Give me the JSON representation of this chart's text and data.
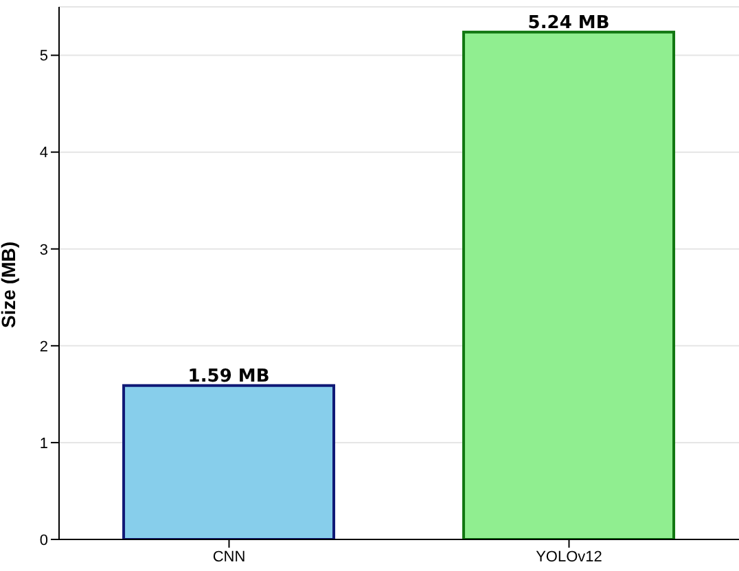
{
  "chart_data": {
    "type": "bar",
    "categories": [
      "CNN",
      "YOLOv12"
    ],
    "values": [
      1.59,
      5.24
    ],
    "colors": [
      "#87ceeb",
      "#90ee90"
    ],
    "value_labels": [
      "1.59 MB",
      "5.24 MB"
    ],
    "ylabel": "Size (MB)",
    "ylim": [
      0,
      5.5
    ],
    "yticks": [
      0,
      1,
      2,
      3,
      4,
      5
    ],
    "grid": "y"
  }
}
